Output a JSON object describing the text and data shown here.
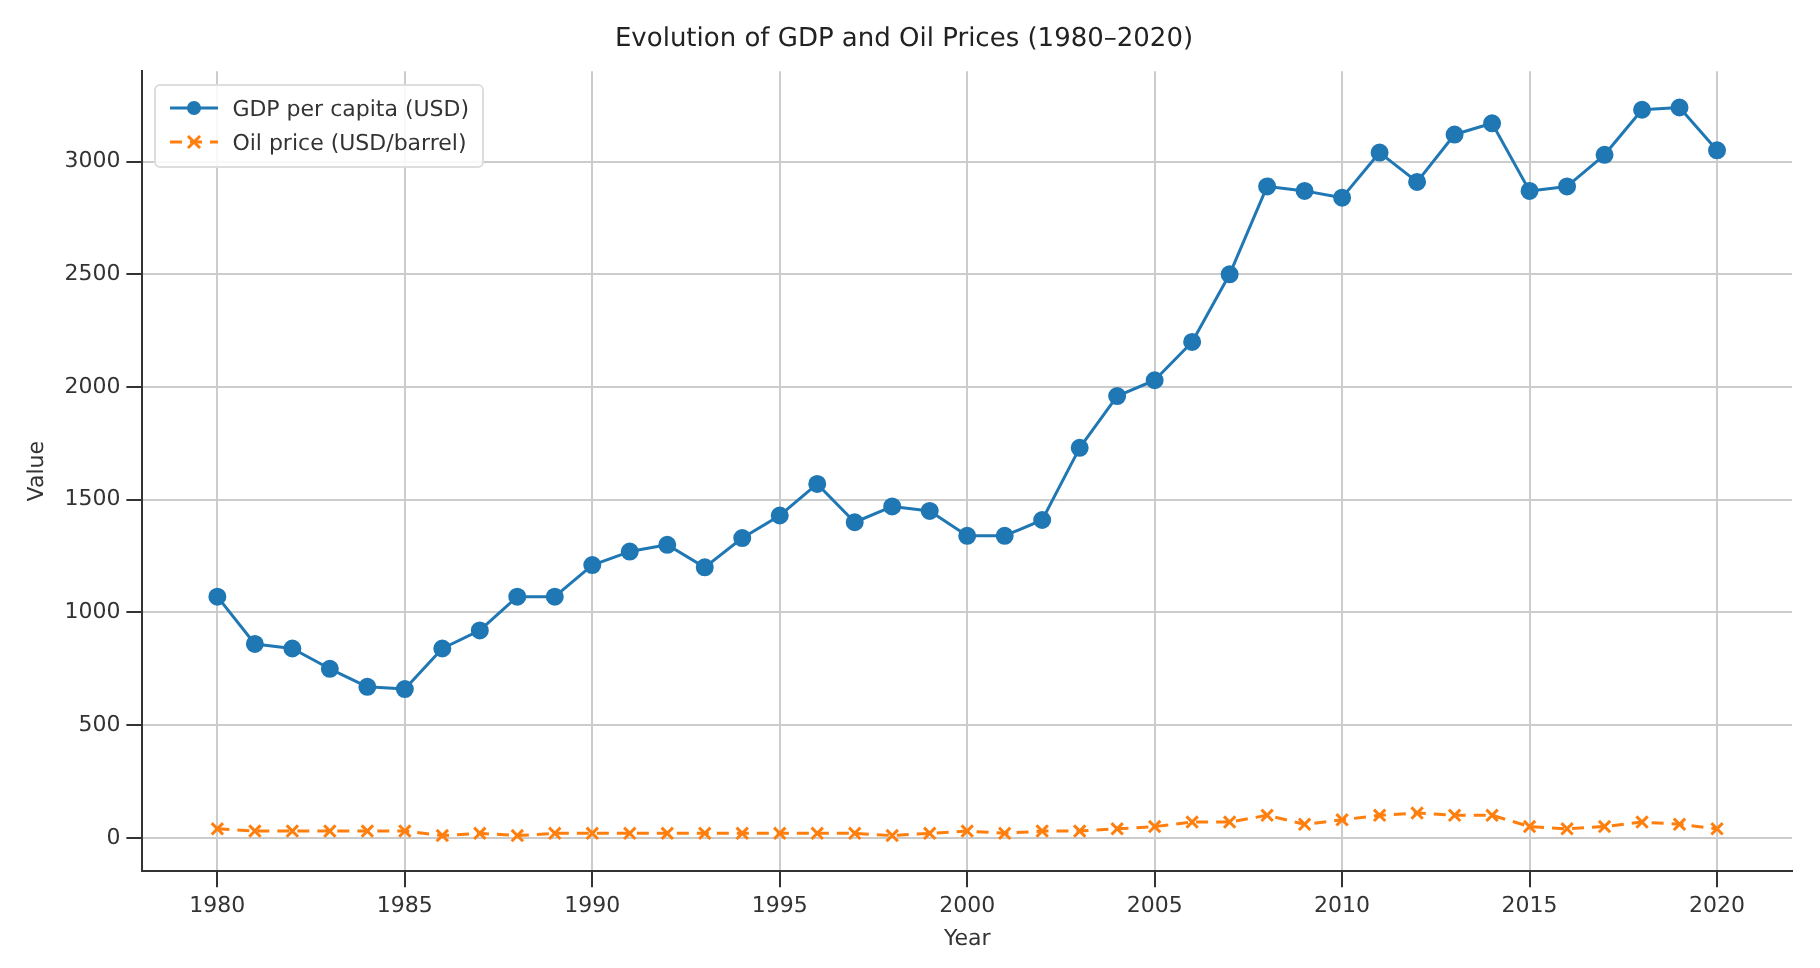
{
  "chart_data": {
    "type": "line",
    "title": "Evolution of GDP and Oil Prices (1980–2020)",
    "xlabel": "Year",
    "ylabel": "Value",
    "x": [
      1980,
      1981,
      1982,
      1983,
      1984,
      1985,
      1986,
      1987,
      1988,
      1989,
      1990,
      1991,
      1992,
      1993,
      1994,
      1995,
      1996,
      1997,
      1998,
      1999,
      2000,
      2001,
      2002,
      2003,
      2004,
      2005,
      2006,
      2007,
      2008,
      2009,
      2010,
      2011,
      2012,
      2013,
      2014,
      2015,
      2016,
      2017,
      2018,
      2019,
      2020
    ],
    "series": [
      {
        "name": "GDP per capita (USD)",
        "color": "#1f77b4",
        "marker": "circle",
        "line_style": "solid",
        "values": [
          1070,
          860,
          840,
          750,
          670,
          660,
          840,
          920,
          1070,
          1070,
          1210,
          1270,
          1300,
          1200,
          1330,
          1430,
          1570,
          1400,
          1470,
          1450,
          1340,
          1340,
          1410,
          1730,
          1960,
          2030,
          2200,
          2500,
          2890,
          2870,
          2840,
          3040,
          2910,
          3120,
          3170,
          2870,
          2890,
          3030,
          3230,
          3240,
          3050
        ]
      },
      {
        "name": "Oil price (USD/barrel)",
        "color": "#ff7f0e",
        "marker": "cross",
        "line_style": "dashed",
        "values": [
          40,
          30,
          30,
          30,
          30,
          30,
          10,
          20,
          10,
          20,
          20,
          20,
          20,
          20,
          20,
          20,
          20,
          20,
          10,
          20,
          30,
          20,
          30,
          30,
          40,
          50,
          70,
          70,
          100,
          60,
          80,
          100,
          110,
          100,
          100,
          50,
          40,
          50,
          70,
          60,
          40
        ]
      }
    ],
    "xlim": [
      1978,
      2022
    ],
    "xticks": [
      1980,
      1985,
      1990,
      1995,
      2000,
      2005,
      2010,
      2015,
      2020
    ],
    "ylim": [
      -148,
      3401
    ],
    "yticks": [
      0,
      500,
      1000,
      1500,
      2000,
      2500,
      3000
    ],
    "grid": true,
    "legend": "top left"
  }
}
